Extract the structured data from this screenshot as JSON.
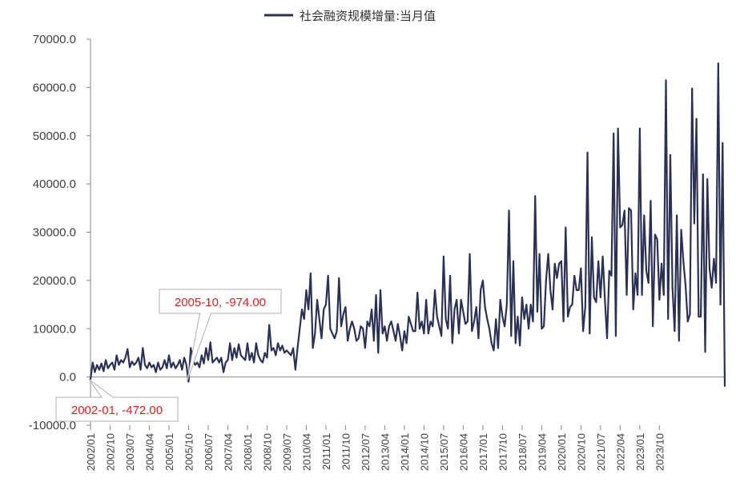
{
  "chart_data": {
    "type": "line",
    "legend": {
      "label": "社会融资规模增量:当月值",
      "position": "top-center"
    },
    "yticks": [
      "-10000.0",
      "0.0",
      "10000.0",
      "20000.0",
      "30000.0",
      "40000.0",
      "50000.0",
      "60000.0",
      "70000.0"
    ],
    "ylim": [
      -10000,
      70000
    ],
    "xticks": [
      "2002/01",
      "2002/10",
      "2003/07",
      "2004/04",
      "2005/01",
      "2005/10",
      "2006/07",
      "2007/04",
      "2008/01",
      "2008/10",
      "2009/07",
      "2010/04",
      "2011/01",
      "2011/10",
      "2012/07",
      "2013/04",
      "2014/01",
      "2014/10",
      "2015/07",
      "2016/04",
      "2017/01",
      "2017/10",
      "2018/07",
      "2019/04",
      "2020/01",
      "2020/10",
      "2021/07",
      "2022/04",
      "2023/01",
      "2023/10"
    ],
    "grid": false,
    "series": [
      {
        "name": "社会融资规模增量:当月值",
        "color": "#2b3155",
        "start": "2002/01",
        "frequency": "monthly",
        "values": [
          -472,
          3000,
          1000,
          2500,
          1500,
          2800,
          1200,
          3500,
          1800,
          2500,
          3000,
          1500,
          4500,
          2500,
          3500,
          3000,
          4000,
          5800,
          2000,
          3200,
          2500,
          3000,
          4000,
          1500,
          6000,
          2500,
          1800,
          3000,
          2000,
          2500,
          1000,
          3000,
          1500,
          2000,
          3500,
          1800,
          4500,
          2000,
          3000,
          1800,
          2500,
          3500,
          1500,
          4000,
          2500,
          -974,
          6000,
          3500,
          2500,
          3000,
          2000,
          4500,
          2800,
          6000,
          3500,
          7200,
          3000,
          3500,
          4000,
          3000,
          4000,
          1000,
          3000,
          3500,
          7000,
          3500,
          6000,
          4000,
          6800,
          4500,
          4000,
          3500,
          7000,
          3500,
          5000,
          3000,
          7000,
          4500,
          3500,
          3000,
          5000,
          4000,
          10800,
          5500,
          6000,
          4500,
          7000,
          5500,
          6500,
          5000,
          5500,
          5000,
          4500,
          6000,
          1500,
          6000,
          10000,
          14000,
          12000,
          18000,
          14000,
          21500,
          6000,
          9000,
          16000,
          12000,
          8000,
          14000,
          15000,
          21000,
          10000,
          9000,
          8000,
          9500,
          20500,
          10500,
          13000,
          14500,
          7500,
          10000,
          11500,
          10000,
          7500,
          8000,
          10500,
          10000,
          6000,
          11500,
          10500,
          14000,
          7500,
          17000,
          5000,
          18000,
          9000,
          10500,
          7500,
          10500,
          11500,
          9500,
          7500,
          11000,
          8500,
          5500,
          9500,
          7000,
          12500,
          11000,
          9500,
          9500,
          17500,
          10000,
          11500,
          9000,
          16000,
          9000,
          11500,
          10500,
          18000,
          12500,
          10500,
          8500,
          25000,
          12000,
          10000,
          21000,
          7000,
          14000,
          16000,
          9000,
          16000,
          13500,
          11000,
          11500,
          25500,
          9500,
          11500,
          14500,
          8000,
          18000,
          20000,
          14500,
          12000,
          10000,
          7000,
          5500,
          12000,
          6000,
          16000,
          12500,
          10500,
          15000,
          34500,
          8500,
          24000,
          7000,
          12500,
          6500,
          16500,
          12000,
          15000,
          10000,
          15000,
          11500,
          37500,
          13500,
          25500,
          10000,
          10500,
          20000,
          25500,
          18000,
          14000,
          23500,
          20500,
          23500,
          24000,
          11500,
          31000,
          12500,
          14500,
          15000,
          21000,
          18000,
          18000,
          22500,
          9500,
          14500,
          46500,
          9000,
          29000,
          16500,
          15500,
          24000,
          16500,
          25000,
          16000,
          8000,
          22000,
          21000,
          50500,
          8500,
          51500,
          31000,
          31500,
          34500,
          17000,
          35000,
          34500,
          14000,
          21500,
          17000,
          51500,
          17000,
          33500,
          22000,
          19500,
          36500,
          10500,
          29500,
          28500,
          16000,
          23500,
          17000,
          61500,
          12000,
          46000,
          18500,
          9500,
          33500,
          7500,
          30500,
          24000,
          19000,
          11500,
          13000,
          59800,
          31800,
          53500,
          12500,
          12500,
          42000,
          5200,
          41000,
          22500,
          18500,
          24500,
          19500,
          65000,
          15000,
          48500,
          -2000
        ]
      }
    ],
    "annotations": [
      {
        "label": "2002-01, -472.00",
        "x": "2002/01",
        "y": -472
      },
      {
        "label": "2005-10, -974.00",
        "x": "2005/10",
        "y": -974
      }
    ]
  }
}
